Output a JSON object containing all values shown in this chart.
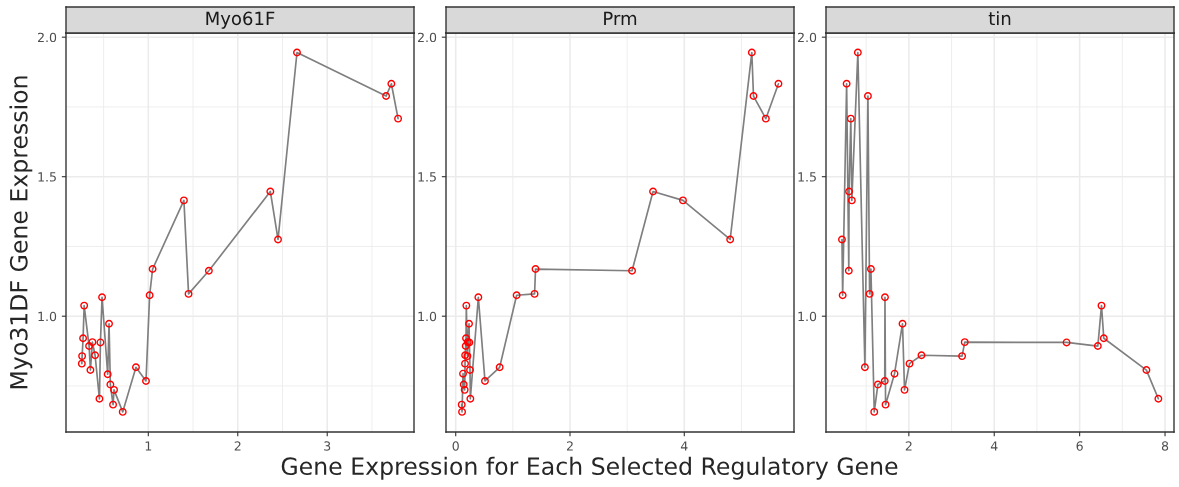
{
  "chart_data": [
    {
      "type": "line",
      "title": "Myo61F",
      "ylabel": "Myo31DF Gene Expression",
      "x": [
        0.257,
        0.26,
        0.271,
        0.283,
        0.338,
        0.353,
        0.375,
        0.405,
        0.454,
        0.465,
        0.483,
        0.546,
        0.561,
        0.576,
        0.606,
        0.617,
        0.714,
        0.862,
        0.974,
        1.015,
        1.048,
        1.398,
        1.45,
        1.677,
        2.364,
        2.45,
        2.662,
        3.658,
        3.717,
        3.792
      ],
      "series": [
        {
          "color": "#7f7f7f",
          "marker": "none",
          "values": [
            0.83,
            0.857,
            0.921,
            1.038,
            0.893,
            0.807,
            0.907,
            0.86,
            0.704,
            0.906,
            1.068,
            0.792,
            0.973,
            0.755,
            0.683,
            0.736,
            0.657,
            0.817,
            0.768,
            1.075,
            1.169,
            1.415,
            1.08,
            1.163,
            1.447,
            1.275,
            1.945,
            1.789,
            1.833,
            1.708
          ]
        },
        {
          "type": "scatter",
          "color": "#ff0000",
          "marker": "circle",
          "values": [
            0.83,
            0.857,
            0.921,
            1.038,
            0.893,
            0.807,
            0.907,
            0.86,
            0.704,
            0.906,
            1.068,
            0.792,
            0.973,
            0.755,
            0.683,
            0.736,
            0.657,
            0.817,
            0.768,
            1.075,
            1.169,
            1.415,
            1.08,
            1.163,
            1.447,
            1.275,
            1.945,
            1.789,
            1.833,
            1.708
          ]
        }
      ],
      "xlim": [
        0.08,
        3.97
      ],
      "xticks": [
        1,
        2,
        3
      ],
      "ylim": [
        0.585,
        2.015
      ],
      "yticks": [
        {
          "value": 1,
          "label": "1.0"
        },
        {
          "value": 1.5,
          "label": "1.5"
        },
        {
          "value": 2,
          "label": "2.0"
        }
      ],
      "grid": true
    },
    {
      "type": "line",
      "title": "Prm",
      "xlabel": "Gene Expression for Each Selected Regulatory Gene",
      "x": [
        0.105,
        0.111,
        0.128,
        0.14,
        0.157,
        0.163,
        0.165,
        0.175,
        0.18,
        0.186,
        0.204,
        0.21,
        0.233,
        0.239,
        0.25,
        0.256,
        0.396,
        0.512,
        0.769,
        1.066,
        1.38,
        1.397,
        3.086,
        3.453,
        3.977,
        4.803,
        5.182,
        5.211,
        5.427,
        5.648
      ],
      "series": [
        {
          "color": "#7f7f7f",
          "marker": "none",
          "values": [
            0.683,
            0.657,
            0.794,
            0.755,
            0.736,
            0.83,
            0.86,
            0.893,
            0.921,
            1.038,
            0.857,
            0.907,
            0.973,
            0.906,
            0.807,
            0.704,
            1.068,
            0.768,
            0.817,
            1.075,
            1.08,
            1.169,
            1.163,
            1.447,
            1.415,
            1.275,
            1.945,
            1.789,
            1.708,
            1.833
          ]
        },
        {
          "type": "scatter",
          "color": "#ff0000",
          "marker": "circle",
          "values": [
            0.683,
            0.657,
            0.794,
            0.755,
            0.736,
            0.83,
            0.86,
            0.893,
            0.921,
            1.038,
            0.857,
            0.907,
            0.973,
            0.906,
            0.807,
            0.704,
            1.068,
            0.768,
            0.817,
            1.075,
            1.08,
            1.169,
            1.163,
            1.447,
            1.415,
            1.275,
            1.945,
            1.789,
            1.708,
            1.833
          ]
        }
      ],
      "xlim": [
        -0.17,
        5.92
      ],
      "xticks": [
        0,
        2,
        4
      ],
      "ylim": [
        0.585,
        2.015
      ],
      "yticks": [
        {
          "value": 1,
          "label": "1.0"
        },
        {
          "value": 1.5,
          "label": "1.5"
        },
        {
          "value": 2,
          "label": "2.0"
        }
      ],
      "grid": true
    },
    {
      "type": "line",
      "title": "tin",
      "x": [
        0.434,
        0.45,
        0.543,
        0.594,
        0.6,
        0.641,
        0.665,
        0.806,
        0.971,
        1.042,
        1.081,
        1.112,
        1.19,
        1.275,
        1.436,
        1.441,
        1.455,
        1.665,
        1.852,
        1.899,
        2.016,
        2.296,
        3.247,
        3.309,
        5.694,
        6.426,
        6.512,
        6.566,
        7.564,
        7.844
      ],
      "series": [
        {
          "color": "#7f7f7f",
          "marker": "none",
          "values": [
            1.275,
            1.075,
            1.833,
            1.163,
            1.447,
            1.708,
            1.415,
            1.945,
            0.817,
            1.789,
            1.08,
            1.169,
            0.657,
            0.755,
            0.768,
            1.068,
            0.683,
            0.794,
            0.973,
            0.736,
            0.83,
            0.86,
            0.857,
            0.907,
            0.906,
            0.893,
            1.038,
            0.921,
            0.807,
            0.704
          ]
        },
        {
          "type": "scatter",
          "color": "#ff0000",
          "marker": "circle",
          "values": [
            1.275,
            1.075,
            1.833,
            1.163,
            1.447,
            1.708,
            1.415,
            1.945,
            0.817,
            1.789,
            1.08,
            1.169,
            0.657,
            0.755,
            0.768,
            1.068,
            0.683,
            0.794,
            0.973,
            0.736,
            0.83,
            0.86,
            0.857,
            0.907,
            0.906,
            0.893,
            1.038,
            0.921,
            0.807,
            0.704
          ]
        }
      ],
      "xlim": [
        0.06,
        8.21
      ],
      "xticks": [
        2,
        4,
        6,
        8
      ],
      "ylim": [
        0.585,
        2.015
      ],
      "yticks": [
        {
          "value": 1,
          "label": "1.0"
        },
        {
          "value": 1.5,
          "label": "1.5"
        },
        {
          "value": 2,
          "label": "2.0"
        }
      ],
      "grid": true
    }
  ]
}
